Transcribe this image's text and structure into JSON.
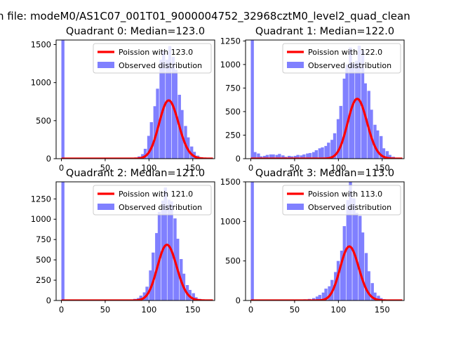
{
  "figure": {
    "suptitle": "h file: modeM0/AS1C07_001T01_9000004752_32968cztM0_level2_quad_clean"
  },
  "chart_data": [
    {
      "type": "bar",
      "title": "Quadrant 0: Median=123.0",
      "legend": [
        "Poission with 123.0",
        "Observed distribution"
      ],
      "legend_position": "top-right",
      "xlim": [
        -6,
        175
      ],
      "ylim": [
        0,
        1560
      ],
      "xticks": [
        0,
        50,
        100,
        150
      ],
      "yticks": [
        0,
        500,
        1000,
        1500
      ],
      "median": 123,
      "poisson_scale": 21300,
      "bin_width": 3.5,
      "bins_x": [
        0,
        75,
        79,
        83,
        87,
        91,
        94,
        98,
        101,
        105,
        108,
        112,
        115,
        119,
        122,
        126,
        129,
        133,
        136,
        140,
        143,
        147,
        150,
        154,
        157,
        161
      ],
      "bins_y": [
        1560,
        5,
        10,
        15,
        30,
        60,
        130,
        300,
        480,
        690,
        920,
        1300,
        1420,
        1300,
        1480,
        1340,
        1170,
        840,
        640,
        430,
        280,
        160,
        90,
        40,
        20,
        10
      ],
      "series": [
        {
          "name": "Observed distribution",
          "color": "#8080ff"
        },
        {
          "name": "Poission with 123.0",
          "color": "#ff0000"
        }
      ]
    },
    {
      "type": "bar",
      "title": "Quadrant 1: Median=122.0",
      "legend": [
        "Poission with 122.0",
        "Observed distribution"
      ],
      "legend_position": "top-right",
      "xlim": [
        -6,
        175
      ],
      "ylim": [
        0,
        1260
      ],
      "xticks": [
        0,
        50,
        100,
        150
      ],
      "yticks": [
        0,
        250,
        500,
        750,
        1000,
        1250
      ],
      "median": 122,
      "poisson_scale": 17600,
      "bin_width": 3.5,
      "bins_x": [
        0,
        3,
        7,
        10,
        14,
        17,
        21,
        24,
        28,
        31,
        35,
        38,
        42,
        45,
        49,
        52,
        56,
        59,
        63,
        66,
        70,
        73,
        77,
        80,
        84,
        87,
        91,
        94,
        98,
        101,
        105,
        108,
        112,
        115,
        119,
        122,
        126,
        129,
        133,
        136,
        140,
        143,
        147,
        150,
        154,
        157,
        161
      ],
      "bins_y": [
        1260,
        70,
        55,
        25,
        30,
        40,
        45,
        45,
        40,
        50,
        35,
        20,
        30,
        25,
        30,
        40,
        35,
        45,
        55,
        60,
        70,
        90,
        110,
        120,
        135,
        170,
        200,
        270,
        420,
        560,
        850,
        1000,
        1180,
        1010,
        1040,
        1200,
        1150,
        800,
        720,
        520,
        360,
        300,
        240,
        110,
        80,
        40,
        20
      ],
      "series": [
        {
          "name": "Observed distribution",
          "color": "#8080ff"
        },
        {
          "name": "Poission with 122.0",
          "color": "#ff0000"
        }
      ]
    },
    {
      "type": "bar",
      "title": "Quadrant 2: Median=121.0",
      "legend": [
        "Poission with 121.0",
        "Observed distribution"
      ],
      "legend_position": "top-right",
      "xlim": [
        -6,
        175
      ],
      "ylim": [
        0,
        1460
      ],
      "xticks": [
        0,
        50,
        100,
        150
      ],
      "yticks": [
        0,
        250,
        500,
        750,
        1000,
        1250
      ],
      "median": 121,
      "poisson_scale": 18900,
      "bin_width": 3.5,
      "bins_x": [
        0,
        75,
        79,
        82,
        86,
        89,
        93,
        96,
        100,
        103,
        107,
        110,
        114,
        117,
        121,
        124,
        128,
        131,
        135,
        138,
        142,
        145,
        149,
        152,
        156
      ],
      "bins_y": [
        1460,
        5,
        10,
        20,
        30,
        60,
        100,
        170,
        370,
        590,
        830,
        1090,
        1230,
        1390,
        1240,
        1220,
        1010,
        760,
        510,
        330,
        190,
        130,
        90,
        40,
        20
      ],
      "series": [
        {
          "name": "Observed distribution",
          "color": "#8080ff"
        },
        {
          "name": "Poission with 121.0",
          "color": "#ff0000"
        }
      ]
    },
    {
      "type": "bar",
      "title": "Quadrant 3: Median=113.0",
      "legend": [
        "Poission with 113.0",
        "Observed distribution"
      ],
      "legend_position": "top-right",
      "xlim": [
        -6,
        175
      ],
      "ylim": [
        0,
        1500
      ],
      "xticks": [
        0,
        50,
        100,
        150
      ],
      "yticks": [
        0,
        500,
        1000,
        1500
      ],
      "median": 113,
      "poisson_scale": 18200,
      "bin_width": 3.5,
      "bins_x": [
        0,
        50,
        55,
        60,
        65,
        70,
        74,
        77,
        81,
        84,
        88,
        91,
        95,
        98,
        102,
        105,
        109,
        112,
        116,
        119,
        123,
        126,
        130,
        133,
        137,
        140,
        144,
        147,
        151,
        154
      ],
      "bins_y": [
        1500,
        5,
        10,
        15,
        20,
        30,
        50,
        70,
        100,
        150,
        180,
        260,
        360,
        500,
        630,
        940,
        1270,
        1500,
        1290,
        1110,
        1070,
        860,
        600,
        370,
        220,
        100,
        60,
        30,
        15,
        5
      ],
      "series": [
        {
          "name": "Observed distribution",
          "color": "#8080ff"
        },
        {
          "name": "Poission with 113.0",
          "color": "#ff0000"
        }
      ]
    }
  ]
}
